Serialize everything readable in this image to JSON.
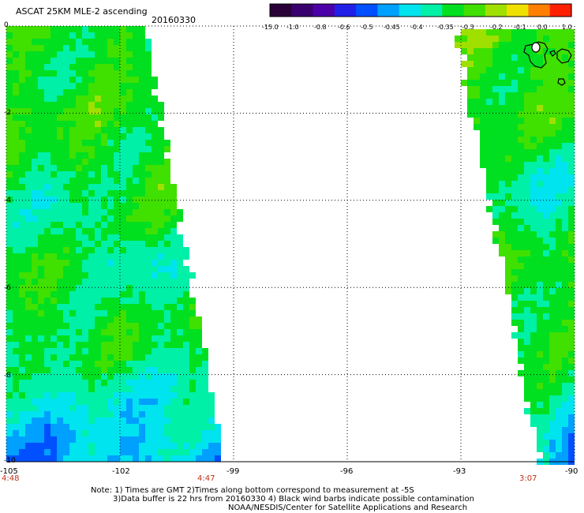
{
  "title": "ASCAT 25KM MLE-2 ascending",
  "date": "20160330",
  "colorbar": {
    "labels": [
      "-15.0",
      "-1.0",
      "-0.8",
      "-0.6",
      "-0.5",
      "-0.45",
      "-0.4",
      "-0.35",
      "-0.3",
      "-0.2",
      "-0.1",
      "0.0",
      "1.0"
    ],
    "colors": [
      "#2a0038",
      "#3a006e",
      "#4b00a8",
      "#2020e8",
      "#0050ff",
      "#00a0ff",
      "#00e4f0",
      "#00f0a8",
      "#00e020",
      "#40e000",
      "#a0e000",
      "#f0e000",
      "#ff8000",
      "#ff2000"
    ]
  },
  "y_axis": {
    "labels": [
      "0",
      "-2",
      "-4",
      "-6",
      "-8",
      "-10"
    ],
    "values": [
      0,
      -2,
      -4,
      -6,
      -8,
      -10
    ]
  },
  "x_axis": {
    "labels": [
      "-105",
      "-102",
      "-99",
      "-96",
      "-93",
      "-90"
    ],
    "values": [
      -105,
      -102,
      -99,
      -96,
      -93,
      -90
    ]
  },
  "times": {
    "left": "4:48",
    "middle": "4:47",
    "right": "3:07"
  },
  "notes": {
    "line1": "Note: 1) Times are GMT 2)Times along bottom correspond to measurement at -5S",
    "line2": "3)Data buffer is 22 hrs from 20160330 4) Black wind barbs indicate possible contamination",
    "line3": "NOAA/NESDIS/Center for Satellite Applications and Research"
  },
  "map": {
    "lon_range": [
      -105,
      -90
    ],
    "lat_range": [
      0,
      -10
    ],
    "swaths": [
      {
        "name": "west-swath",
        "lon_west": -105,
        "edge_lon_at_top": -101.4,
        "edge_lon_at_bottom": -99.3
      },
      {
        "name": "east-swath",
        "lon_east": -90,
        "edge_lon_at_top": -93.2,
        "edge_lon_at_bottom": -91.0
      }
    ]
  }
}
